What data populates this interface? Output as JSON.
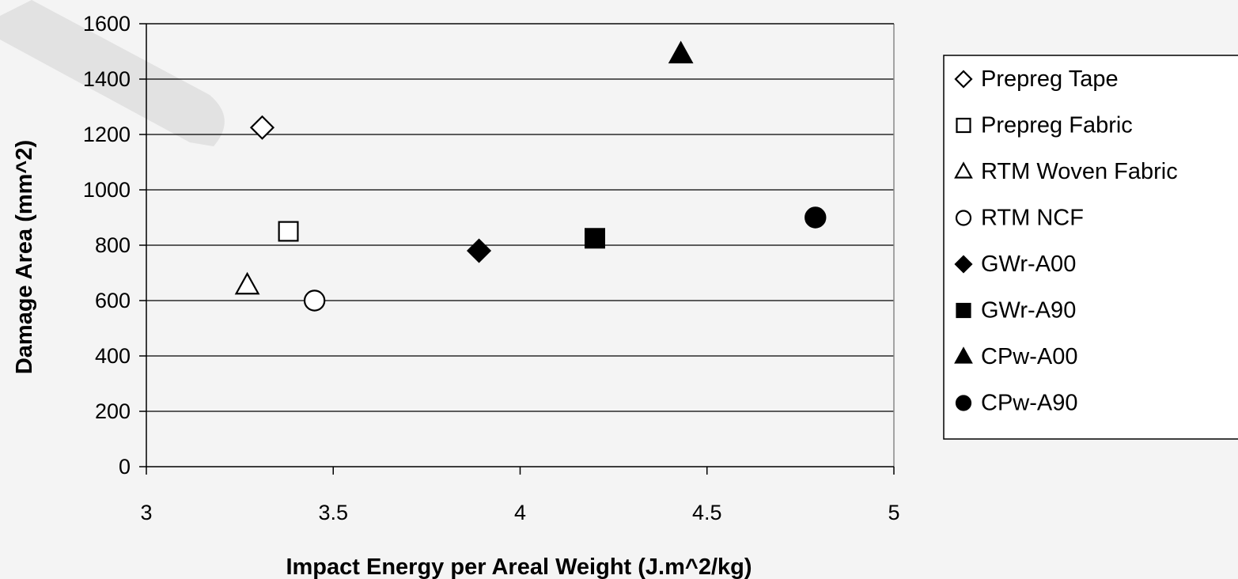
{
  "chart_data": {
    "type": "scatter",
    "title": "",
    "xlabel": "Impact Energy per Areal Weight (J.m^2/kg)",
    "ylabel": "Damage Area (mm^2)",
    "xlim": [
      3,
      5
    ],
    "ylim": [
      0,
      1600
    ],
    "x_ticks": [
      "3",
      "3.5",
      "4",
      "4.5",
      "5"
    ],
    "y_ticks": [
      "0",
      "200",
      "400",
      "600",
      "800",
      "1000",
      "1200",
      "1400",
      "1600"
    ],
    "grid": "horizontal",
    "legend_position": "right",
    "series": [
      {
        "name": "Prepreg Tape",
        "marker": "diamond",
        "filled": false,
        "x": [
          3.31
        ],
        "y": [
          1225
        ]
      },
      {
        "name": "Prepreg Fabric",
        "marker": "square",
        "filled": false,
        "x": [
          3.38
        ],
        "y": [
          850
        ]
      },
      {
        "name": "RTM Woven Fabric",
        "marker": "triangle",
        "filled": false,
        "x": [
          3.27
        ],
        "y": [
          655
        ]
      },
      {
        "name": "RTM NCF",
        "marker": "circle",
        "filled": false,
        "x": [
          3.45
        ],
        "y": [
          600
        ]
      },
      {
        "name": "GWr-A00",
        "marker": "diamond",
        "filled": true,
        "x": [
          3.89
        ],
        "y": [
          780
        ]
      },
      {
        "name": "GWr-A90",
        "marker": "square",
        "filled": true,
        "x": [
          4.2
        ],
        "y": [
          825
        ]
      },
      {
        "name": "CPw-A00",
        "marker": "triangle",
        "filled": true,
        "x": [
          4.43
        ],
        "y": [
          1490
        ]
      },
      {
        "name": "CPw-A90",
        "marker": "circle",
        "filled": true,
        "x": [
          4.79
        ],
        "y": [
          900
        ]
      }
    ]
  }
}
